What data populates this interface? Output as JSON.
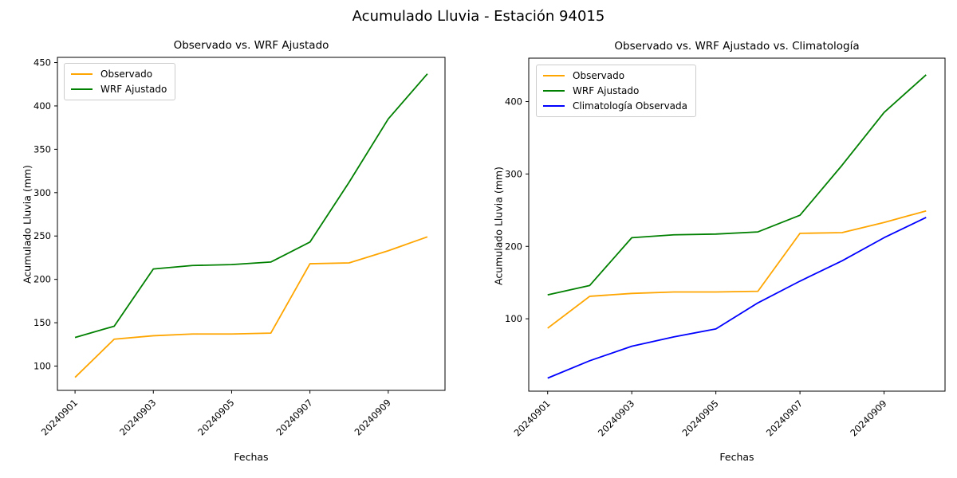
{
  "figure": {
    "title": "Acumulado Lluvia - Estación 94015",
    "background_color": "#ffffff",
    "axis_color": "#000000",
    "legend_border_color": "#cccccc"
  },
  "chart_data": [
    {
      "type": "line",
      "title": "Observado vs. WRF Ajustado",
      "xlabel": "Fechas",
      "ylabel": "Acumulado Lluvia (mm)",
      "categories": [
        "20240901",
        "20240902",
        "20240903",
        "20240904",
        "20240905",
        "20240906",
        "20240907",
        "20240908",
        "20240909",
        "20240910"
      ],
      "x_tick_labels": [
        "20240901",
        "20240903",
        "20240905",
        "20240907",
        "20240909"
      ],
      "x_tick_rotation": 45,
      "y_ticks": [
        100,
        150,
        200,
        250,
        300,
        350,
        400,
        450
      ],
      "ylim": [
        72,
        456
      ],
      "xlim": [
        0.55,
        10.45
      ],
      "grid": false,
      "legend_position": "upper left",
      "series": [
        {
          "name": "Observado",
          "color": "#ffa500",
          "values": [
            87,
            131,
            135,
            137,
            137,
            138,
            218,
            219,
            233,
            249
          ]
        },
        {
          "name": "WRF Ajustado",
          "color": "#008000",
          "values": [
            133,
            146,
            212,
            216,
            217,
            220,
            243,
            312,
            385,
            437
          ]
        }
      ]
    },
    {
      "type": "line",
      "title": "Observado vs. WRF Ajustado vs. Climatología",
      "xlabel": "Fechas",
      "ylabel": "Acumulado Lluvia (mm)",
      "categories": [
        "20240901",
        "20240902",
        "20240903",
        "20240904",
        "20240905",
        "20240906",
        "20240907",
        "20240908",
        "20240909",
        "20240910"
      ],
      "x_tick_labels": [
        "20240901",
        "20240903",
        "20240905",
        "20240907",
        "20240909"
      ],
      "x_tick_rotation": 45,
      "y_ticks": [
        100,
        200,
        300,
        400
      ],
      "ylim": [
        0,
        460
      ],
      "xlim": [
        0.55,
        10.45
      ],
      "grid": false,
      "legend_position": "upper left",
      "series": [
        {
          "name": "Observado",
          "color": "#ffa500",
          "values": [
            87,
            131,
            135,
            137,
            137,
            138,
            218,
            219,
            233,
            249
          ]
        },
        {
          "name": "WRF Ajustado",
          "color": "#008000",
          "values": [
            133,
            146,
            212,
            216,
            217,
            220,
            243,
            312,
            385,
            437
          ]
        },
        {
          "name": "Climatología Observada",
          "color": "#0000ff",
          "values": [
            18,
            42,
            62,
            75,
            86,
            122,
            152,
            180,
            212,
            240
          ]
        }
      ]
    }
  ]
}
